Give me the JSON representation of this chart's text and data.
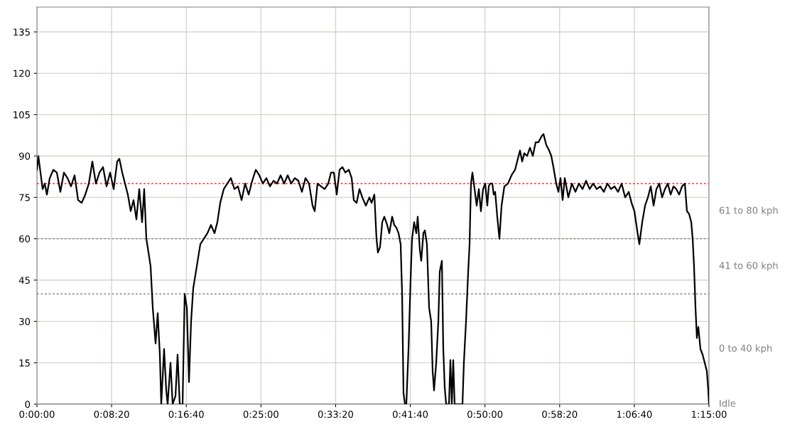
{
  "chart_data": {
    "type": "line",
    "xlim": [
      0,
      1.25
    ],
    "ylim": [
      0,
      144
    ],
    "xticks": [
      {
        "value": 0,
        "label": "0:00:00"
      },
      {
        "value": 0.138889,
        "label": "0:08:20"
      },
      {
        "value": 0.277778,
        "label": "0:16:40"
      },
      {
        "value": 0.416667,
        "label": "0:25:00"
      },
      {
        "value": 0.555556,
        "label": "0:33:20"
      },
      {
        "value": 0.694444,
        "label": "0:41:40"
      },
      {
        "value": 0.833333,
        "label": "0:50:00"
      },
      {
        "value": 0.972222,
        "label": "0:58:20"
      },
      {
        "value": 1.111111,
        "label": "1:06:40"
      },
      {
        "value": 1.25,
        "label": "1:15:00"
      }
    ],
    "yticks": [
      0,
      15,
      30,
      45,
      60,
      75,
      90,
      105,
      120,
      135
    ],
    "grid": true,
    "marker": "none",
    "line_style": "solid",
    "ref_lines": [
      {
        "axis": "y",
        "value": 80,
        "color": "#ff0000",
        "line_style": "dotted"
      },
      {
        "axis": "y",
        "value": 60,
        "color": "#808080",
        "line_style": "dotted"
      },
      {
        "axis": "y",
        "value": 40,
        "color": "#808080",
        "line_style": "dotted"
      },
      {
        "axis": "y",
        "value": 0,
        "color": "#808080",
        "line_style": "solid",
        "label": "Idle"
      }
    ],
    "annotations": [
      "61 to 80 kph",
      "41 to 60 kph",
      "0 to 40 kph"
    ],
    "series": [
      {
        "color": "#000000",
        "x": [
          0,
          0.0026,
          0.0066,
          0.0106,
          0.0145,
          0.0185,
          0.0238,
          0.0304,
          0.037,
          0.0436,
          0.0502,
          0.0568,
          0.0634,
          0.07,
          0.0766,
          0.0832,
          0.0899,
          0.0965,
          0.1031,
          0.1097,
          0.1163,
          0.1229,
          0.1295,
          0.1361,
          0.1427,
          0.1493,
          0.1533,
          0.1586,
          0.1638,
          0.1691,
          0.1744,
          0.1797,
          0.185,
          0.1903,
          0.1956,
          0.1995,
          0.2035,
          0.2075,
          0.2114,
          0.2154,
          0.2207,
          0.2246,
          0.2286,
          0.2312,
          0.2365,
          0.2405,
          0.2431,
          0.2484,
          0.2524,
          0.2577,
          0.2616,
          0.2656,
          0.2709,
          0.2748,
          0.2788,
          0.2828,
          0.2867,
          0.2907,
          0.2973,
          0.3039,
          0.3105,
          0.3171,
          0.3237,
          0.3303,
          0.3356,
          0.3409,
          0.3475,
          0.3541,
          0.3607,
          0.3673,
          0.3739,
          0.3806,
          0.3872,
          0.3938,
          0.4004,
          0.407,
          0.4136,
          0.4202,
          0.4268,
          0.4334,
          0.44,
          0.4466,
          0.4532,
          0.4598,
          0.4664,
          0.473,
          0.4797,
          0.4863,
          0.4929,
          0.4995,
          0.5061,
          0.5127,
          0.5166,
          0.5219,
          0.5285,
          0.5351,
          0.5418,
          0.547,
          0.5523,
          0.5576,
          0.5629,
          0.5682,
          0.5735,
          0.5801,
          0.5854,
          0.5893,
          0.5946,
          0.5999,
          0.6052,
          0.6118,
          0.6184,
          0.6224,
          0.6276,
          0.6316,
          0.6342,
          0.6382,
          0.6422,
          0.6461,
          0.6514,
          0.6554,
          0.6607,
          0.6646,
          0.6686,
          0.6726,
          0.6765,
          0.6792,
          0.6818,
          0.6845,
          0.6871,
          0.6911,
          0.695,
          0.6977,
          0.7016,
          0.7056,
          0.7082,
          0.7122,
          0.7148,
          0.7188,
          0.7215,
          0.7254,
          0.7294,
          0.7333,
          0.736,
          0.7386,
          0.7426,
          0.7466,
          0.7492,
          0.7532,
          0.7558,
          0.7585,
          0.7611,
          0.7664,
          0.769,
          0.7717,
          0.7743,
          0.7769,
          0.7915,
          0.7941,
          0.7981,
          0.8021,
          0.8047,
          0.8073,
          0.81,
          0.814,
          0.8179,
          0.8219,
          0.8258,
          0.8298,
          0.8338,
          0.8377,
          0.8404,
          0.843,
          0.847,
          0.8496,
          0.8523,
          0.8562,
          0.8602,
          0.8642,
          0.8694,
          0.8761,
          0.8827,
          0.8893,
          0.8932,
          0.8985,
          0.9025,
          0.9064,
          0.9117,
          0.917,
          0.9223,
          0.9276,
          0.9329,
          0.9382,
          0.9421,
          0.9474,
          0.9527,
          0.9567,
          0.9606,
          0.9659,
          0.9699,
          0.9738,
          0.9778,
          0.9818,
          0.9884,
          0.995,
          1.0016,
          1.0082,
          1.0148,
          1.0214,
          1.028,
          1.0346,
          1.0412,
          1.0478,
          1.0544,
          1.0611,
          1.0677,
          1.0743,
          1.0809,
          1.0875,
          1.0941,
          1.1007,
          1.106,
          1.1113,
          1.1165,
          1.1205,
          1.1258,
          1.1311,
          1.1364,
          1.1417,
          1.147,
          1.1522,
          1.1575,
          1.1628,
          1.1681,
          1.1734,
          1.1787,
          1.1839,
          1.1892,
          1.1945,
          1.1998,
          1.2051,
          1.209,
          1.213,
          1.217,
          1.2196,
          1.2222,
          1.2249,
          1.2275,
          1.2302,
          1.2341,
          1.2381,
          1.2421,
          1.246,
          1.2487,
          1.25
        ],
        "values": [
          85,
          90,
          84,
          78,
          80,
          76,
          82,
          85,
          84,
          77,
          84,
          82,
          79,
          83,
          74,
          73,
          76,
          80,
          88,
          80,
          84,
          86,
          79,
          84,
          78,
          88,
          89,
          84,
          80,
          76,
          70,
          74,
          67,
          78,
          66,
          78,
          60,
          55,
          50,
          35,
          22,
          33,
          18,
          0,
          20,
          5,
          0,
          15,
          0,
          3,
          18,
          0,
          0,
          40,
          35,
          8,
          30,
          42,
          50,
          58,
          60,
          62,
          65,
          62,
          66,
          73,
          78,
          80,
          82,
          78,
          79,
          74,
          80,
          76,
          81,
          85,
          83,
          80,
          82,
          79,
          81,
          80,
          83,
          80,
          83,
          80,
          82,
          81,
          77,
          82,
          80,
          72,
          70,
          80,
          79,
          78,
          80,
          84,
          84,
          76,
          85,
          86,
          84,
          85,
          82,
          74,
          73,
          78,
          75,
          72,
          75,
          73,
          76,
          60,
          55,
          57,
          66,
          68,
          65,
          62,
          68,
          65,
          64,
          62,
          58,
          40,
          4,
          0,
          0,
          20,
          45,
          60,
          66,
          62,
          68,
          56,
          52,
          62,
          63,
          58,
          35,
          30,
          12,
          5,
          15,
          30,
          48,
          52,
          20,
          6,
          0,
          0,
          16,
          0,
          16,
          0,
          0,
          15,
          30,
          48,
          58,
          80,
          84,
          78,
          72,
          78,
          70,
          78,
          80,
          72,
          79,
          80,
          80,
          76,
          77,
          68,
          60,
          72,
          79,
          80,
          83,
          85,
          88,
          92,
          88,
          91,
          90,
          93,
          90,
          95,
          95,
          97,
          98,
          94,
          92,
          90,
          86,
          80,
          77,
          82,
          74,
          82,
          75,
          80,
          77,
          80,
          78,
          81,
          78,
          80,
          78,
          79,
          77,
          80,
          78,
          79,
          77,
          80,
          75,
          77,
          73,
          70,
          63,
          58,
          66,
          72,
          75,
          79,
          72,
          78,
          80,
          75,
          78,
          80,
          76,
          79,
          78,
          76,
          79,
          80,
          70,
          69,
          66,
          60,
          50,
          35,
          24,
          28,
          20,
          18,
          15,
          12,
          5,
          0
        ]
      }
    ]
  }
}
